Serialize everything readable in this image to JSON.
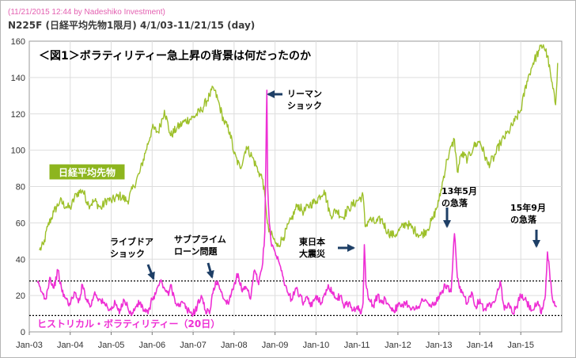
{
  "header": {
    "timestamp_line": "(11/21/2015 12:44 by Nadeshiko Investment)",
    "chart_title": "N225F (日経平均先物1限月) 4/1/03-11/21/15 (day)"
  },
  "figure_title": "＜図1＞ボラティリティー急上昇の背景は何だったのか",
  "colors": {
    "nikkei": "#9dc02a",
    "volatility": "#ee2fd4",
    "arrow": "#1e3f66",
    "grid": "#dddddd",
    "reference_line": "#000000",
    "label_box": "#8db51e"
  },
  "chart_data": {
    "type": "line",
    "x_labels": [
      "Jan-03",
      "Jan-04",
      "Jan-05",
      "Jan-06",
      "Jan-07",
      "Jan-08",
      "Jan-09",
      "Jan-10",
      "Jan-11",
      "Jan-12",
      "Jan-13",
      "Jan-14",
      "Jan-15"
    ],
    "y_ticks": [
      0,
      20,
      40,
      60,
      80,
      100,
      120,
      140,
      160
    ],
    "ylim": [
      0,
      160
    ],
    "xlim": [
      2003.0,
      2016.0
    ],
    "grid": true,
    "series": [
      {
        "name": "日経平均先物",
        "key": "nikkei",
        "x": [
          2003.25,
          2003.35,
          2003.45,
          2003.6,
          2003.75,
          2003.9,
          2004.0,
          2004.15,
          2004.3,
          2004.45,
          2004.6,
          2004.75,
          2004.9,
          2005.0,
          2005.2,
          2005.4,
          2005.55,
          2005.7,
          2005.85,
          2006.0,
          2006.15,
          2006.3,
          2006.45,
          2006.6,
          2006.8,
          2007.0,
          2007.2,
          2007.4,
          2007.5,
          2007.6,
          2007.75,
          2007.9,
          2008.0,
          2008.15,
          2008.3,
          2008.45,
          2008.6,
          2008.7,
          2008.78,
          2008.85,
          2008.95,
          2009.05,
          2009.2,
          2009.4,
          2009.55,
          2009.7,
          2009.85,
          2010.0,
          2010.2,
          2010.35,
          2010.5,
          2010.65,
          2010.8,
          2011.0,
          2011.15,
          2011.2,
          2011.3,
          2011.45,
          2011.6,
          2011.75,
          2011.9,
          2012.0,
          2012.2,
          2012.4,
          2012.55,
          2012.7,
          2012.85,
          2013.0,
          2013.2,
          2013.38,
          2013.45,
          2013.55,
          2013.7,
          2013.85,
          2014.0,
          2014.2,
          2014.35,
          2014.5,
          2014.7,
          2014.85,
          2015.0,
          2015.15,
          2015.3,
          2015.45,
          2015.55,
          2015.65,
          2015.75,
          2015.85,
          2015.9
        ],
        "y": [
          45,
          48,
          58,
          66,
          72,
          69,
          68,
          76,
          78,
          70,
          72,
          68,
          73,
          72,
          75,
          72,
          80,
          88,
          100,
          112,
          110,
          122,
          108,
          112,
          116,
          118,
          122,
          130,
          134,
          128,
          116,
          110,
          98,
          90,
          102,
          96,
          88,
          84,
          68,
          55,
          52,
          47,
          52,
          62,
          70,
          66,
          70,
          72,
          78,
          64,
          67,
          63,
          68,
          72,
          75,
          58,
          62,
          60,
          62,
          55,
          53,
          55,
          60,
          56,
          53,
          56,
          62,
          72,
          95,
          106,
          88,
          98,
          95,
          102,
          105,
          92,
          96,
          104,
          110,
          116,
          122,
          138,
          148,
          155,
          158,
          152,
          138,
          125,
          148
        ]
      },
      {
        "name": "ヒストリカル・ボラティリティー（20日）",
        "key": "volatility",
        "x": [
          2003.2,
          2003.3,
          2003.4,
          2003.5,
          2003.6,
          2003.7,
          2003.8,
          2003.9,
          2004.0,
          2004.1,
          2004.2,
          2004.3,
          2004.4,
          2004.5,
          2004.6,
          2004.7,
          2004.8,
          2004.9,
          2005.0,
          2005.1,
          2005.2,
          2005.3,
          2005.4,
          2005.5,
          2005.6,
          2005.7,
          2005.8,
          2005.9,
          2006.0,
          2006.1,
          2006.2,
          2006.3,
          2006.4,
          2006.45,
          2006.55,
          2006.65,
          2006.75,
          2006.85,
          2007.0,
          2007.1,
          2007.2,
          2007.3,
          2007.4,
          2007.5,
          2007.6,
          2007.68,
          2007.75,
          2007.85,
          2008.0,
          2008.1,
          2008.2,
          2008.3,
          2008.4,
          2008.5,
          2008.6,
          2008.7,
          2008.75,
          2008.78,
          2008.8,
          2008.82,
          2008.86,
          2008.9,
          2009.0,
          2009.1,
          2009.2,
          2009.3,
          2009.4,
          2009.5,
          2009.6,
          2009.7,
          2009.8,
          2009.9,
          2010.0,
          2010.15,
          2010.3,
          2010.4,
          2010.5,
          2010.6,
          2010.7,
          2010.8,
          2010.9,
          2011.0,
          2011.1,
          2011.15,
          2011.18,
          2011.22,
          2011.3,
          2011.4,
          2011.5,
          2011.6,
          2011.7,
          2011.8,
          2011.9,
          2012.0,
          2012.2,
          2012.4,
          2012.5,
          2012.6,
          2012.8,
          2013.0,
          2013.15,
          2013.3,
          2013.38,
          2013.45,
          2013.5,
          2013.6,
          2013.7,
          2013.8,
          2013.9,
          2014.0,
          2014.1,
          2014.2,
          2014.3,
          2014.4,
          2014.5,
          2014.6,
          2014.7,
          2014.8,
          2014.9,
          2015.0,
          2015.1,
          2015.2,
          2015.3,
          2015.4,
          2015.5,
          2015.6,
          2015.65,
          2015.7,
          2015.75,
          2015.8,
          2015.88
        ],
        "y": [
          27,
          22,
          18,
          30,
          24,
          34,
          22,
          18,
          15,
          22,
          16,
          26,
          18,
          14,
          22,
          18,
          16,
          14,
          12,
          16,
          10,
          18,
          14,
          9,
          14,
          16,
          12,
          10,
          18,
          22,
          28,
          24,
          20,
          26,
          18,
          14,
          16,
          12,
          10,
          14,
          20,
          12,
          10,
          24,
          28,
          22,
          18,
          16,
          26,
          32,
          22,
          24,
          18,
          34,
          26,
          38,
          55,
          100,
          133,
          80,
          60,
          50,
          44,
          38,
          30,
          22,
          18,
          24,
          20,
          16,
          18,
          14,
          20,
          16,
          26,
          22,
          18,
          20,
          14,
          16,
          12,
          14,
          10,
          16,
          48,
          26,
          18,
          14,
          20,
          16,
          18,
          14,
          12,
          14,
          16,
          12,
          14,
          18,
          14,
          18,
          26,
          22,
          54,
          30,
          24,
          20,
          16,
          22,
          14,
          18,
          12,
          14,
          16,
          20,
          28,
          12,
          16,
          10,
          14,
          20,
          18,
          14,
          12,
          16,
          10,
          20,
          44,
          34,
          22,
          16,
          14
        ]
      }
    ],
    "reference_lines": [
      28,
      9
    ],
    "labels": {
      "nikkei": "日経平均先物",
      "volatility": "ヒストリカル・ボラティリティー（20日）"
    },
    "annotations": [
      {
        "key": "lehman",
        "lines": [
          "リーマン",
          "ショック"
        ],
        "x": 2008.8,
        "y": 133
      },
      {
        "key": "livedoor",
        "lines": [
          "ライブドア",
          "ショック"
        ],
        "x": 2006.0,
        "y": 29
      },
      {
        "key": "subprime",
        "lines": [
          "サブプライム",
          "ローン問題"
        ],
        "x": 2007.6,
        "y": 29
      },
      {
        "key": "tohoku",
        "lines": [
          "東日本",
          "大震災"
        ],
        "x": 2011.2,
        "y": 48
      },
      {
        "key": "may13",
        "lines": [
          "13年5月",
          "の急落"
        ],
        "x": 2013.4,
        "y": 54
      },
      {
        "key": "sep15",
        "lines": [
          "15年9月",
          "の急落"
        ],
        "x": 2015.7,
        "y": 44
      }
    ]
  }
}
